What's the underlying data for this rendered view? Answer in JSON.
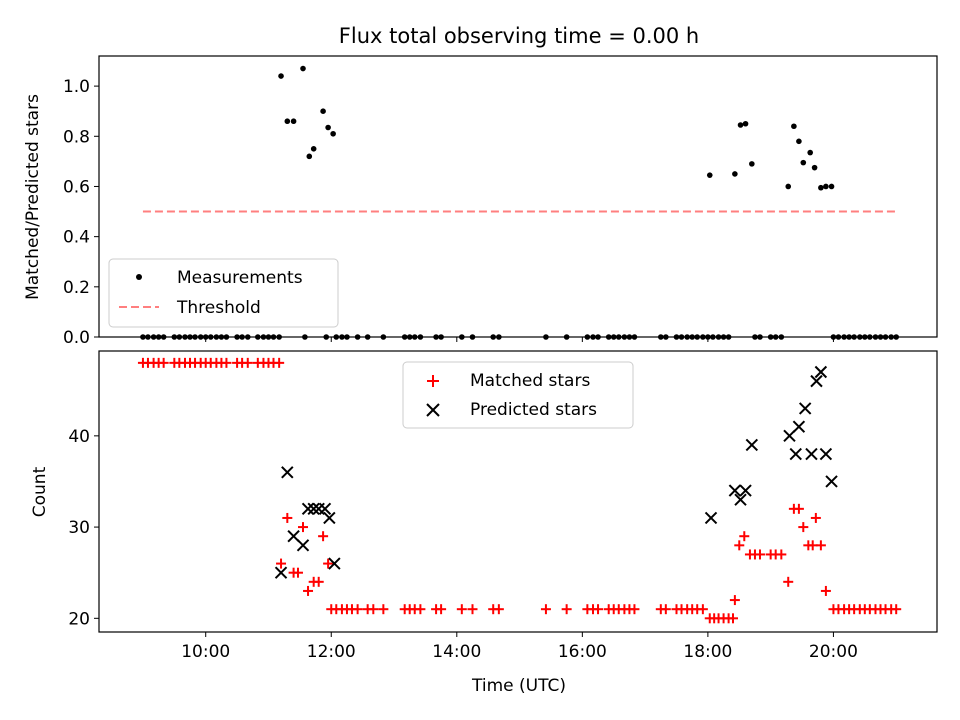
{
  "chart_data": [
    {
      "type": "scatter",
      "title": "Flux total observing time = 0.00 h",
      "xlabel": "",
      "ylabel": "Matched/Predicted stars",
      "xlim": [
        8.3,
        21.65
      ],
      "ylim": [
        0.0,
        1.12
      ],
      "yticks": [
        "0.0",
        "0.2",
        "0.4",
        "0.6",
        "0.8",
        "1.0"
      ],
      "x_tick_hours": [
        10,
        12,
        14,
        16,
        18,
        20
      ],
      "legend": {
        "position": "lower-left",
        "entries": [
          "Measurements",
          "Threshold"
        ]
      },
      "series": [
        {
          "name": "Measurements",
          "color": "#000000",
          "marker": "dot",
          "points": [
            [
              9.0,
              0
            ],
            [
              9.08,
              0
            ],
            [
              9.17,
              0
            ],
            [
              9.25,
              0
            ],
            [
              9.33,
              0
            ],
            [
              9.5,
              0
            ],
            [
              9.58,
              0
            ],
            [
              9.67,
              0
            ],
            [
              9.75,
              0
            ],
            [
              9.83,
              0
            ],
            [
              9.92,
              0
            ],
            [
              10.0,
              0
            ],
            [
              10.08,
              0
            ],
            [
              10.17,
              0
            ],
            [
              10.25,
              0
            ],
            [
              10.33,
              0
            ],
            [
              10.5,
              0
            ],
            [
              10.58,
              0
            ],
            [
              10.67,
              0
            ],
            [
              10.83,
              0
            ],
            [
              10.92,
              0
            ],
            [
              11.0,
              0
            ],
            [
              11.08,
              0
            ],
            [
              11.17,
              0
            ],
            [
              11.58,
              0
            ],
            [
              11.92,
              0
            ],
            [
              12.08,
              0
            ],
            [
              12.17,
              0
            ],
            [
              12.25,
              0
            ],
            [
              12.42,
              0
            ],
            [
              12.58,
              0
            ],
            [
              12.83,
              0
            ],
            [
              13.17,
              0
            ],
            [
              13.25,
              0
            ],
            [
              13.33,
              0
            ],
            [
              13.42,
              0
            ],
            [
              13.67,
              0
            ],
            [
              13.75,
              0
            ],
            [
              14.08,
              0
            ],
            [
              14.25,
              0
            ],
            [
              14.58,
              0
            ],
            [
              14.67,
              0
            ],
            [
              15.42,
              0
            ],
            [
              15.75,
              0
            ],
            [
              16.08,
              0
            ],
            [
              16.17,
              0
            ],
            [
              16.25,
              0
            ],
            [
              16.42,
              0
            ],
            [
              16.5,
              0
            ],
            [
              16.58,
              0
            ],
            [
              16.67,
              0
            ],
            [
              16.75,
              0
            ],
            [
              16.83,
              0
            ],
            [
              17.25,
              0
            ],
            [
              17.33,
              0
            ],
            [
              17.5,
              0
            ],
            [
              17.58,
              0
            ],
            [
              17.67,
              0
            ],
            [
              17.75,
              0
            ],
            [
              17.83,
              0
            ],
            [
              17.92,
              0
            ],
            [
              18.0,
              0
            ],
            [
              18.08,
              0
            ],
            [
              18.17,
              0
            ],
            [
              18.25,
              0
            ],
            [
              18.33,
              0
            ],
            [
              18.75,
              0
            ],
            [
              18.83,
              0
            ],
            [
              19.0,
              0
            ],
            [
              19.08,
              0
            ],
            [
              19.17,
              0
            ],
            [
              20.0,
              0
            ],
            [
              20.08,
              0
            ],
            [
              20.17,
              0
            ],
            [
              20.25,
              0
            ],
            [
              20.33,
              0
            ],
            [
              20.42,
              0
            ],
            [
              20.5,
              0
            ],
            [
              20.58,
              0
            ],
            [
              20.67,
              0
            ],
            [
              20.75,
              0
            ],
            [
              20.83,
              0
            ],
            [
              20.92,
              0
            ],
            [
              21.0,
              0
            ],
            [
              11.2,
              1.04
            ],
            [
              11.3,
              0.86
            ],
            [
              11.4,
              0.86
            ],
            [
              11.55,
              1.07
            ],
            [
              11.65,
              0.72
            ],
            [
              11.72,
              0.75
            ],
            [
              11.87,
              0.9
            ],
            [
              11.95,
              0.835
            ],
            [
              12.03,
              0.81
            ],
            [
              18.03,
              0.645
            ],
            [
              18.43,
              0.65
            ],
            [
              18.52,
              0.845
            ],
            [
              18.6,
              0.85
            ],
            [
              18.7,
              0.69
            ],
            [
              19.28,
              0.6
            ],
            [
              19.37,
              0.84
            ],
            [
              19.45,
              0.78
            ],
            [
              19.52,
              0.695
            ],
            [
              19.63,
              0.735
            ],
            [
              19.7,
              0.675
            ],
            [
              19.8,
              0.595
            ],
            [
              19.88,
              0.6
            ],
            [
              19.97,
              0.6
            ]
          ]
        },
        {
          "name": "Threshold",
          "color": "#ff7f7f",
          "line": "dashed",
          "points": [
            [
              9.0,
              0.5
            ],
            [
              21.0,
              0.5
            ]
          ]
        }
      ]
    },
    {
      "type": "scatter",
      "title": "",
      "xlabel": "Time (UTC)",
      "ylabel": "Count",
      "xlim": [
        8.3,
        21.65
      ],
      "ylim": [
        18.5,
        49.3
      ],
      "yticks": [
        "20",
        "30",
        "40"
      ],
      "x_tick_hours": [
        10,
        12,
        14,
        16,
        18,
        20
      ],
      "xtick_labels": [
        "10:00",
        "12:00",
        "14:00",
        "16:00",
        "18:00",
        "20:00"
      ],
      "legend": {
        "position": "upper-center",
        "entries": [
          "Matched stars",
          "Predicted stars"
        ]
      },
      "series": [
        {
          "name": "Matched stars",
          "color": "#ff0000",
          "marker": "plus",
          "points": [
            [
              9.0,
              48
            ],
            [
              9.08,
              48
            ],
            [
              9.17,
              48
            ],
            [
              9.25,
              48
            ],
            [
              9.33,
              48
            ],
            [
              9.5,
              48
            ],
            [
              9.58,
              48
            ],
            [
              9.67,
              48
            ],
            [
              9.75,
              48
            ],
            [
              9.83,
              48
            ],
            [
              9.92,
              48
            ],
            [
              10.0,
              48
            ],
            [
              10.08,
              48
            ],
            [
              10.17,
              48
            ],
            [
              10.25,
              48
            ],
            [
              10.33,
              48
            ],
            [
              10.5,
              48
            ],
            [
              10.58,
              48
            ],
            [
              10.67,
              48
            ],
            [
              10.83,
              48
            ],
            [
              10.92,
              48
            ],
            [
              11.0,
              48
            ],
            [
              11.08,
              48
            ],
            [
              11.17,
              48
            ],
            [
              11.2,
              26
            ],
            [
              11.3,
              31
            ],
            [
              11.4,
              25
            ],
            [
              11.47,
              25
            ],
            [
              11.55,
              30
            ],
            [
              11.63,
              23
            ],
            [
              11.72,
              24
            ],
            [
              11.8,
              24
            ],
            [
              11.87,
              29
            ],
            [
              11.95,
              26
            ],
            [
              12.0,
              21
            ],
            [
              12.08,
              21
            ],
            [
              12.17,
              21
            ],
            [
              12.25,
              21
            ],
            [
              12.33,
              21
            ],
            [
              12.42,
              21
            ],
            [
              12.58,
              21
            ],
            [
              12.67,
              21
            ],
            [
              12.83,
              21
            ],
            [
              13.17,
              21
            ],
            [
              13.25,
              21
            ],
            [
              13.33,
              21
            ],
            [
              13.42,
              21
            ],
            [
              13.67,
              21
            ],
            [
              13.75,
              21
            ],
            [
              14.08,
              21
            ],
            [
              14.25,
              21
            ],
            [
              14.58,
              21
            ],
            [
              14.67,
              21
            ],
            [
              15.42,
              21
            ],
            [
              15.75,
              21
            ],
            [
              16.08,
              21
            ],
            [
              16.17,
              21
            ],
            [
              16.25,
              21
            ],
            [
              16.42,
              21
            ],
            [
              16.5,
              21
            ],
            [
              16.58,
              21
            ],
            [
              16.67,
              21
            ],
            [
              16.75,
              21
            ],
            [
              16.83,
              21
            ],
            [
              17.25,
              21
            ],
            [
              17.33,
              21
            ],
            [
              17.5,
              21
            ],
            [
              17.58,
              21
            ],
            [
              17.67,
              21
            ],
            [
              17.75,
              21
            ],
            [
              17.83,
              21
            ],
            [
              17.92,
              21
            ],
            [
              18.03,
              20
            ],
            [
              18.1,
              20
            ],
            [
              18.17,
              20
            ],
            [
              18.25,
              20
            ],
            [
              18.33,
              20
            ],
            [
              18.4,
              20
            ],
            [
              18.43,
              22
            ],
            [
              18.5,
              28
            ],
            [
              18.58,
              29
            ],
            [
              18.67,
              27
            ],
            [
              18.75,
              27
            ],
            [
              18.83,
              27
            ],
            [
              19.0,
              27
            ],
            [
              19.08,
              27
            ],
            [
              19.17,
              27
            ],
            [
              19.28,
              24
            ],
            [
              19.37,
              32
            ],
            [
              19.45,
              32
            ],
            [
              19.52,
              30
            ],
            [
              19.6,
              28
            ],
            [
              19.67,
              28
            ],
            [
              19.72,
              31
            ],
            [
              19.8,
              28
            ],
            [
              19.88,
              23
            ],
            [
              20.0,
              21
            ],
            [
              20.08,
              21
            ],
            [
              20.17,
              21
            ],
            [
              20.25,
              21
            ],
            [
              20.33,
              21
            ],
            [
              20.42,
              21
            ],
            [
              20.5,
              21
            ],
            [
              20.58,
              21
            ],
            [
              20.67,
              21
            ],
            [
              20.75,
              21
            ],
            [
              20.83,
              21
            ],
            [
              20.92,
              21
            ],
            [
              21.0,
              21
            ]
          ]
        },
        {
          "name": "Predicted stars",
          "color": "#000000",
          "marker": "x",
          "points": [
            [
              11.2,
              25
            ],
            [
              11.3,
              36
            ],
            [
              11.4,
              29
            ],
            [
              11.55,
              28
            ],
            [
              11.63,
              32
            ],
            [
              11.72,
              32
            ],
            [
              11.8,
              32
            ],
            [
              11.9,
              32
            ],
            [
              11.97,
              31
            ],
            [
              12.05,
              26
            ],
            [
              18.05,
              31
            ],
            [
              18.43,
              34
            ],
            [
              18.52,
              33
            ],
            [
              18.6,
              34
            ],
            [
              18.7,
              39
            ],
            [
              19.3,
              40
            ],
            [
              19.4,
              38
            ],
            [
              19.45,
              41
            ],
            [
              19.55,
              43
            ],
            [
              19.65,
              38
            ],
            [
              19.73,
              46
            ],
            [
              19.8,
              47
            ],
            [
              19.88,
              38
            ],
            [
              19.97,
              35
            ]
          ]
        }
      ]
    }
  ]
}
